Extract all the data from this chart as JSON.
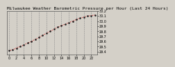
{
  "title": "Milwaukee Weather Barometric Pressure per Hour (Last 24 Hours)",
  "x_values": [
    0,
    1,
    2,
    3,
    4,
    5,
    6,
    7,
    8,
    9,
    10,
    11,
    12,
    13,
    14,
    15,
    16,
    17,
    18,
    19,
    20,
    21,
    22,
    23
  ],
  "y_values": [
    29.42,
    29.44,
    29.47,
    29.5,
    29.53,
    29.57,
    29.6,
    29.64,
    29.68,
    29.72,
    29.76,
    29.8,
    29.84,
    29.88,
    29.91,
    29.94,
    29.97,
    30.0,
    30.03,
    30.06,
    30.08,
    30.1,
    30.11,
    30.12
  ],
  "y_min": 29.35,
  "y_max": 30.2,
  "y_ticks": [
    29.4,
    29.5,
    29.6,
    29.7,
    29.8,
    29.9,
    30.0,
    30.1,
    30.2
  ],
  "y_tick_labels": [
    "29.4",
    "29.5",
    "29.6",
    "29.7",
    "29.8",
    "29.9",
    "30.0",
    "30.1",
    "30.2"
  ],
  "x_tick_step": 2,
  "line_color": "#cc0000",
  "marker_color": "#222222",
  "bg_color": "#d4d0c8",
  "plot_bg": "#d4d0c8",
  "title_fontsize": 4.5,
  "tick_fontsize": 3.5,
  "grid_color": "#888888",
  "grid_linestyle": "--"
}
